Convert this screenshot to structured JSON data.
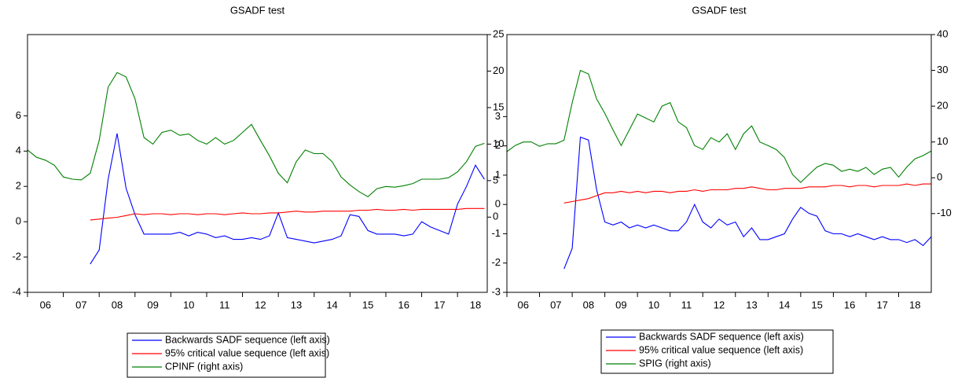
{
  "chart_data": [
    {
      "type": "line",
      "title": "GSADF test",
      "x": [
        2006,
        2006.25,
        2006.5,
        2006.75,
        2007,
        2007.25,
        2007.5,
        2007.75,
        2008,
        2008.25,
        2008.5,
        2008.75,
        2009,
        2009.25,
        2009.5,
        2009.75,
        2010,
        2010.25,
        2010.5,
        2010.75,
        2011,
        2011.25,
        2011.5,
        2011.75,
        2012,
        2012.25,
        2012.5,
        2012.75,
        2013,
        2013.25,
        2013.5,
        2013.75,
        2014,
        2014.25,
        2014.5,
        2014.75,
        2015,
        2015.25,
        2015.5,
        2015.75,
        2016,
        2016.25,
        2016.5,
        2016.75,
        2017,
        2017.25,
        2017.5,
        2017.75,
        2018,
        2018.25,
        2018.5,
        2018.75
      ],
      "xlim": [
        2006,
        2018.83
      ],
      "xticks": [
        {
          "value": 2006,
          "label": "06"
        },
        {
          "value": 2007,
          "label": "07"
        },
        {
          "value": 2008,
          "label": "08"
        },
        {
          "value": 2009,
          "label": "09"
        },
        {
          "value": 2010,
          "label": "10"
        },
        {
          "value": 2011,
          "label": "11"
        },
        {
          "value": 2012,
          "label": "12"
        },
        {
          "value": 2013,
          "label": "13"
        },
        {
          "value": 2014,
          "label": "14"
        },
        {
          "value": 2015,
          "label": "15"
        },
        {
          "value": 2016,
          "label": "16"
        },
        {
          "value": 2017,
          "label": "17"
        },
        {
          "value": 2018,
          "label": "18"
        }
      ],
      "ylim": [
        -4,
        10.6
      ],
      "yticks": [
        -4,
        -2,
        0,
        2,
        4,
        6
      ],
      "y2lim": [
        -10.3,
        25
      ],
      "y2ticks": [
        0,
        5,
        10,
        15,
        20,
        25
      ],
      "series": [
        {
          "name": "Backwards SADF sequence (left axis)",
          "color": "#0000ff",
          "axis": "y",
          "values": [
            null,
            null,
            null,
            null,
            null,
            null,
            null,
            -2.4,
            -1.6,
            2.4,
            5.0,
            1.9,
            0.4,
            -0.7,
            -0.7,
            -0.7,
            -0.7,
            -0.6,
            -0.8,
            -0.6,
            -0.7,
            -0.9,
            -0.8,
            -1.0,
            -1.0,
            -0.9,
            -1.0,
            -0.8,
            0.5,
            -0.9,
            -1.0,
            -1.1,
            -1.2,
            -1.1,
            -1.0,
            -0.8,
            0.4,
            0.3,
            -0.5,
            -0.7,
            -0.7,
            -0.7,
            -0.8,
            -0.7,
            0.0,
            -0.3,
            -0.5,
            -0.7,
            1.0,
            2.0,
            3.2,
            2.4
          ]
        },
        {
          "name": "95% critical value sequence (left axis)",
          "color": "#ff0000",
          "axis": "y",
          "values": [
            null,
            null,
            null,
            null,
            null,
            null,
            null,
            0.1,
            0.15,
            0.2,
            0.25,
            0.35,
            0.45,
            0.4,
            0.45,
            0.45,
            0.4,
            0.45,
            0.45,
            0.4,
            0.45,
            0.45,
            0.4,
            0.45,
            0.5,
            0.45,
            0.45,
            0.5,
            0.5,
            0.55,
            0.6,
            0.55,
            0.55,
            0.6,
            0.6,
            0.6,
            0.6,
            0.65,
            0.65,
            0.7,
            0.65,
            0.65,
            0.7,
            0.65,
            0.7,
            0.7,
            0.7,
            0.7,
            0.7,
            0.75,
            0.75,
            0.75
          ]
        },
        {
          "name": "CPINF (right axis)",
          "color": "#008000",
          "axis": "y2",
          "values": [
            9.2,
            8.2,
            7.8,
            7.1,
            5.5,
            5.2,
            5.1,
            6.0,
            10.5,
            17.8,
            19.8,
            19.2,
            16.2,
            10.9,
            10.0,
            11.6,
            11.9,
            11.2,
            11.4,
            10.5,
            10.0,
            10.9,
            10.0,
            10.5,
            11.6,
            12.7,
            10.5,
            8.4,
            6.0,
            4.7,
            7.6,
            9.2,
            8.7,
            8.7,
            7.6,
            5.5,
            4.4,
            3.5,
            2.8,
            3.9,
            4.2,
            4.1,
            4.3,
            4.6,
            5.2,
            5.2,
            5.2,
            5.4,
            6.2,
            7.6,
            9.7,
            10.1
          ]
        }
      ]
    },
    {
      "type": "line",
      "title": "GSADF test",
      "x": [
        2006,
        2006.25,
        2006.5,
        2006.75,
        2007,
        2007.25,
        2007.5,
        2007.75,
        2008,
        2008.25,
        2008.5,
        2008.75,
        2009,
        2009.25,
        2009.5,
        2009.75,
        2010,
        2010.25,
        2010.5,
        2010.75,
        2011,
        2011.25,
        2011.5,
        2011.75,
        2012,
        2012.25,
        2012.5,
        2012.75,
        2013,
        2013.25,
        2013.5,
        2013.75,
        2014,
        2014.25,
        2014.5,
        2014.75,
        2015,
        2015.25,
        2015.5,
        2015.75,
        2016,
        2016.25,
        2016.5,
        2016.75,
        2017,
        2017.25,
        2017.5,
        2017.75,
        2018,
        2018.25,
        2018.5,
        2018.75,
        2019
      ],
      "xlim": [
        2006,
        2019
      ],
      "xticks": [
        {
          "value": 2006,
          "label": "06"
        },
        {
          "value": 2007,
          "label": "07"
        },
        {
          "value": 2008,
          "label": "08"
        },
        {
          "value": 2009,
          "label": "09"
        },
        {
          "value": 2010,
          "label": "10"
        },
        {
          "value": 2011,
          "label": "11"
        },
        {
          "value": 2012,
          "label": "12"
        },
        {
          "value": 2013,
          "label": "13"
        },
        {
          "value": 2014,
          "label": "14"
        },
        {
          "value": 2015,
          "label": "15"
        },
        {
          "value": 2016,
          "label": "16"
        },
        {
          "value": 2017,
          "label": "17"
        },
        {
          "value": 2018,
          "label": "18"
        }
      ],
      "ylim": [
        -3,
        5.8
      ],
      "yticks": [
        -3,
        -2,
        -1,
        0,
        1,
        2,
        3
      ],
      "y2lim": [
        -32,
        40
      ],
      "y2ticks": [
        -10,
        0,
        10,
        20,
        30,
        40
      ],
      "series": [
        {
          "name": "Backwards SADF sequence (left axis)",
          "color": "#0000ff",
          "axis": "y",
          "values": [
            null,
            null,
            null,
            null,
            null,
            null,
            null,
            -2.2,
            -1.5,
            2.3,
            2.2,
            0.5,
            -0.6,
            -0.7,
            -0.6,
            -0.8,
            -0.7,
            -0.8,
            -0.7,
            -0.8,
            -0.9,
            -0.9,
            -0.6,
            0.0,
            -0.6,
            -0.8,
            -0.5,
            -0.7,
            -0.6,
            -1.1,
            -0.8,
            -1.2,
            -1.2,
            -1.1,
            -1.0,
            -0.5,
            -0.1,
            -0.3,
            -0.4,
            -0.9,
            -1.0,
            -1.0,
            -1.1,
            -1.0,
            -1.1,
            -1.2,
            -1.1,
            -1.2,
            -1.2,
            -1.3,
            -1.2,
            -1.4,
            -1.1
          ]
        },
        {
          "name": "95% critical value sequence (left axis)",
          "color": "#ff0000",
          "axis": "y",
          "values": [
            null,
            null,
            null,
            null,
            null,
            null,
            null,
            0.05,
            0.1,
            0.15,
            0.2,
            0.3,
            0.4,
            0.4,
            0.45,
            0.4,
            0.45,
            0.4,
            0.45,
            0.45,
            0.4,
            0.45,
            0.45,
            0.5,
            0.45,
            0.5,
            0.5,
            0.5,
            0.55,
            0.55,
            0.6,
            0.55,
            0.5,
            0.5,
            0.55,
            0.55,
            0.55,
            0.6,
            0.6,
            0.6,
            0.65,
            0.65,
            0.6,
            0.65,
            0.65,
            0.6,
            0.65,
            0.65,
            0.65,
            0.7,
            0.65,
            0.7,
            0.7
          ]
        },
        {
          "name": "SPIG (right axis)",
          "color": "#008000",
          "axis": "y2",
          "values": [
            7.3,
            9,
            10,
            10,
            8.8,
            9.5,
            9.5,
            10.5,
            21,
            30,
            29,
            22,
            18,
            13.4,
            9,
            13.4,
            17.8,
            16.7,
            15.6,
            20,
            21,
            15.6,
            14,
            9,
            7.9,
            11.2,
            10,
            12.3,
            7.9,
            12.3,
            14.5,
            10,
            9,
            7.9,
            5.7,
            0.9,
            -1.3,
            0.9,
            3,
            4,
            3.5,
            1.8,
            2.4,
            1.8,
            2.9,
            0.9,
            2.4,
            2.9,
            0.2,
            3,
            5.3,
            6.2,
            7.5
          ]
        }
      ]
    }
  ]
}
